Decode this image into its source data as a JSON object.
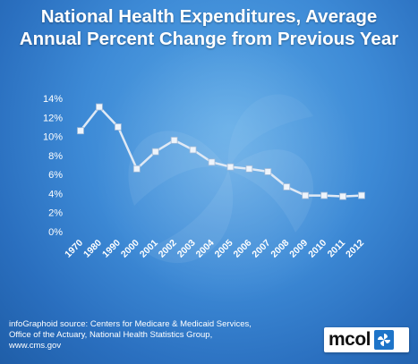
{
  "header": {
    "title_line1": "National Health Expenditures, Average",
    "title_line2": "Annual Percent Change from Previous Year"
  },
  "chart_data": {
    "type": "line",
    "x": [
      "1970",
      "1980",
      "1990",
      "2000",
      "2001",
      "2002",
      "2003",
      "2004",
      "2005",
      "2006",
      "2007",
      "2008",
      "2009",
      "2010",
      "2011",
      "2012"
    ],
    "values": [
      10.6,
      13.1,
      11.0,
      6.6,
      8.4,
      9.6,
      8.6,
      7.3,
      6.8,
      6.6,
      6.3,
      4.7,
      3.8,
      3.8,
      3.7,
      3.8
    ],
    "ylim": [
      0,
      14
    ],
    "yticks": [
      0,
      2,
      4,
      6,
      8,
      10,
      12,
      14
    ],
    "ytick_labels": [
      "0%",
      "2%",
      "4%",
      "6%",
      "8%",
      "10%",
      "12%",
      "14%"
    ],
    "grid": false,
    "legend": "none",
    "marker": "square",
    "line_color": "#dfe9f5"
  },
  "footer": {
    "source_line1": "infoGraphoid source:  Centers for Medicare & Medicaid Services,",
    "source_line2": "Office of the Actuary, National Health Statistics Group,",
    "source_line3": "www.cms.gov"
  },
  "logo": {
    "text": "mcol",
    "icon": "pinwheel-icon",
    "accent": "#1e74c8"
  }
}
